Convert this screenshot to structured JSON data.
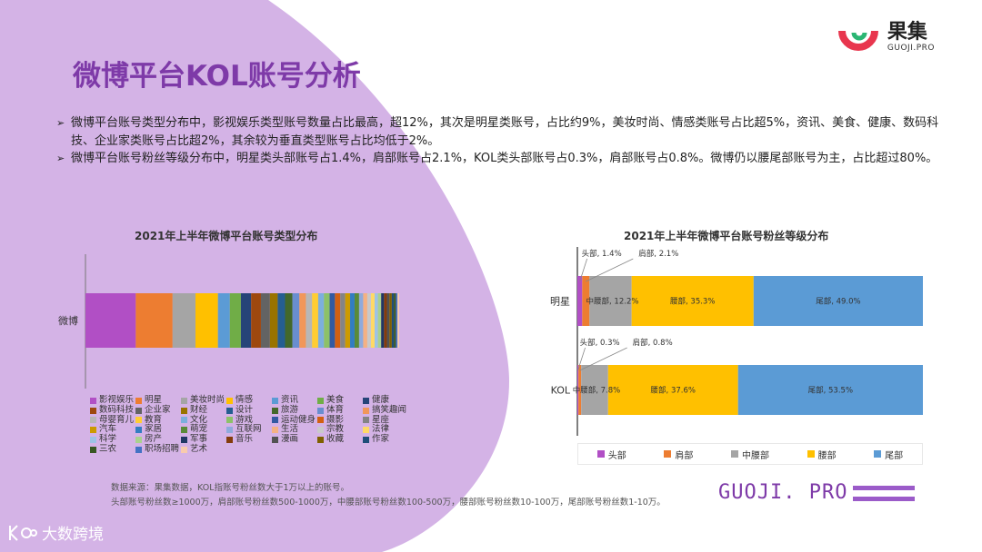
{
  "brand": {
    "name_cn": "果集",
    "name_en": "GUOJI.PRO",
    "footer_text": "GUOJI. PRO",
    "bottom_logo": "大数跨境"
  },
  "page_title": "微博平台KOL账号分析",
  "bullets": [
    "微博平台账号类型分布中，影视娱乐类型账号数量占比最高，超12%，其次是明星类账号，占比约9%，美妆时尚、情感类账号占比超5%，资讯、美食、健康、数码科技、企业家类账号占比超2%，其余较为垂直类型账号占比均低于2%。",
    "微博平台账号粉丝等级分布中，明星类头部账号占1.4%，肩部账号占2.1%，KOL类头部账号占0.3%，肩部账号占0.8%。微博仍以腰尾部账号为主，占比超过80%。"
  ],
  "source_lines": [
    "数据来源：果集数据，KOL指账号粉丝数大于1万以上的账号。",
    "头部账号粉丝数≥1000万，肩部账号粉丝数500-1000万，中腰部账号粉丝数100-500万，腰部账号粉丝数10-100万，尾部账号粉丝数1-10万。"
  ],
  "colors": {
    "accent": "#7e3aa8",
    "bg_shape": "#d4b3e6"
  },
  "chart_data": [
    {
      "type": "bar",
      "orientation": "horizontal-stacked",
      "title": "2021年上半年微博平台账号类型分布",
      "categories": [
        "微博"
      ],
      "series": [
        {
          "name": "影视娱乐",
          "value": 12.3,
          "color": "#b14fc5"
        },
        {
          "name": "明星",
          "value": 9.0,
          "color": "#ed7d31"
        },
        {
          "name": "美妆时尚",
          "value": 5.6,
          "color": "#a5a5a5"
        },
        {
          "name": "情感",
          "value": 5.5,
          "color": "#ffc000"
        },
        {
          "name": "资讯",
          "value": 2.9,
          "color": "#5b9bd5"
        },
        {
          "name": "美食",
          "value": 2.7,
          "color": "#70ad47"
        },
        {
          "name": "健康",
          "value": 2.5,
          "color": "#264478"
        },
        {
          "name": "数码科技",
          "value": 2.4,
          "color": "#9e480e"
        },
        {
          "name": "企业家",
          "value": 2.2,
          "color": "#636363"
        },
        {
          "name": "财经",
          "value": 1.9,
          "color": "#997300"
        },
        {
          "name": "设计",
          "value": 1.8,
          "color": "#255e91"
        },
        {
          "name": "旅游",
          "value": 1.8,
          "color": "#43682b"
        },
        {
          "name": "体育",
          "value": 1.7,
          "color": "#698ed0"
        },
        {
          "name": "搞笑趣闻",
          "value": 1.6,
          "color": "#f1975a"
        },
        {
          "name": "母婴育儿",
          "value": 1.5,
          "color": "#b7b7b7"
        },
        {
          "name": "教育",
          "value": 1.5,
          "color": "#ffcd33"
        },
        {
          "name": "文化",
          "value": 1.4,
          "color": "#7cafdd"
        },
        {
          "name": "游戏",
          "value": 1.4,
          "color": "#8cc168"
        },
        {
          "name": "运动健身",
          "value": 1.3,
          "color": "#335aa1"
        },
        {
          "name": "摄影",
          "value": 1.3,
          "color": "#d26012"
        },
        {
          "name": "星座",
          "value": 1.2,
          "color": "#848484"
        },
        {
          "name": "汽车",
          "value": 1.2,
          "color": "#cc9a00"
        },
        {
          "name": "家居",
          "value": 1.1,
          "color": "#327dc2"
        },
        {
          "name": "萌宠",
          "value": 1.1,
          "color": "#5a8a39"
        },
        {
          "name": "互联网",
          "value": 1.0,
          "color": "#8faadc"
        },
        {
          "name": "生活",
          "value": 1.0,
          "color": "#f4b183"
        },
        {
          "name": "宗教",
          "value": 0.9,
          "color": "#c9c9c9"
        },
        {
          "name": "法律",
          "value": 0.9,
          "color": "#ffd966"
        },
        {
          "name": "科学",
          "value": 0.8,
          "color": "#9dc3e6"
        },
        {
          "name": "房产",
          "value": 0.8,
          "color": "#a9d18e"
        },
        {
          "name": "军事",
          "value": 0.7,
          "color": "#203864"
        },
        {
          "name": "音乐",
          "value": 0.7,
          "color": "#843c0c"
        },
        {
          "name": "漫画",
          "value": 0.6,
          "color": "#525252"
        },
        {
          "name": "收藏",
          "value": 0.6,
          "color": "#7f6000"
        },
        {
          "name": "作家",
          "value": 0.5,
          "color": "#1f4e79"
        },
        {
          "name": "三农",
          "value": 0.5,
          "color": "#385723"
        },
        {
          "name": "职场招聘",
          "value": 0.4,
          "color": "#4472c4"
        },
        {
          "name": "艺术",
          "value": 0.4,
          "color": "#f8cbad"
        }
      ]
    },
    {
      "type": "bar",
      "orientation": "horizontal-stacked-100",
      "title": "2021年上半年微博平台账号粉丝等级分布",
      "categories": [
        "明星",
        "KOL"
      ],
      "series": [
        {
          "name": "头部",
          "color": "#b14fc5",
          "values": [
            1.4,
            0.3
          ]
        },
        {
          "name": "肩部",
          "color": "#ed7d31",
          "values": [
            2.1,
            0.8
          ]
        },
        {
          "name": "中腰部",
          "color": "#a5a5a5",
          "values": [
            12.2,
            7.8
          ]
        },
        {
          "name": "腰部",
          "color": "#ffc000",
          "values": [
            35.3,
            37.6
          ]
        },
        {
          "name": "尾部",
          "color": "#5b9bd5",
          "values": [
            49.0,
            53.5
          ]
        }
      ],
      "data_labels": [
        [
          "头部, 1.4%",
          "肩部, 2.1%",
          "中腰部, 12.2%",
          "腰部, 35.3%",
          "尾部, 49.0%"
        ],
        [
          "头部, 0.3%",
          "肩部, 0.8%",
          "中腰部, 7.8%",
          "腰部, 37.6%",
          "尾部, 53.5%"
        ]
      ]
    }
  ]
}
